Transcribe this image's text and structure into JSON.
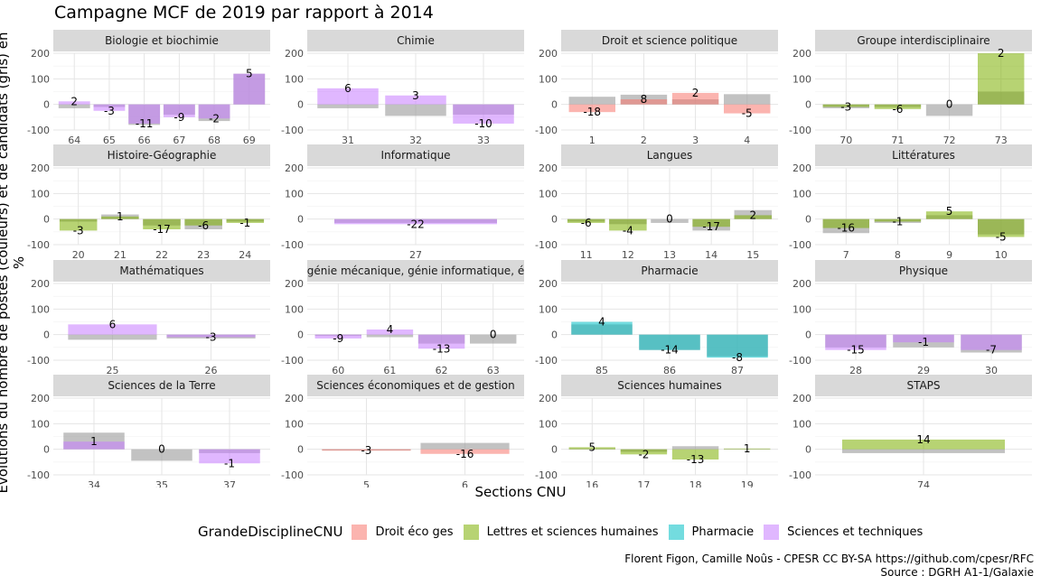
{
  "chart_data": {
    "type": "bar",
    "title": "Campagne MCF de 2019 par rapport à 2014",
    "xlabel": "Sections CNU",
    "ylabel": "Evolutions du nombre de postes (couleurs) et de candidats (gris) en %",
    "ylim": [
      -100,
      200
    ],
    "y_ticks": [
      -100,
      0,
      100,
      200
    ],
    "grid": true,
    "legend": {
      "title": "GrandeDisciplineCNU",
      "position": "bottom",
      "entries": [
        {
          "name": "Droit éco ges",
          "color": "#F8766D"
        },
        {
          "name": "Lettres et sciences humaines",
          "color": "#7CAE00"
        },
        {
          "name": "Pharmacie",
          "color": "#00BFC4"
        },
        {
          "name": "Sciences et techniques",
          "color": "#C77CFF"
        }
      ]
    },
    "candidates_color": "#999999",
    "panels": [
      {
        "name": "Biologie et biochimie",
        "group": "Sciences et techniques",
        "sections": [
          {
            "x": "64",
            "postes": 12,
            "candidats": -15,
            "label": "2"
          },
          {
            "x": "65",
            "postes": -25,
            "candidats": -10,
            "label": "-3"
          },
          {
            "x": "66",
            "postes": -75,
            "candidats": -80,
            "label": "-11"
          },
          {
            "x": "67",
            "postes": -50,
            "candidats": -40,
            "label": "-9"
          },
          {
            "x": "68",
            "postes": -55,
            "candidats": -65,
            "label": "-2"
          },
          {
            "x": "69",
            "postes": 120,
            "candidats": 120,
            "label": "5"
          }
        ]
      },
      {
        "name": "Chimie",
        "group": "Sciences et techniques",
        "sections": [
          {
            "x": "31",
            "postes": 63,
            "candidats": -15,
            "label": "6"
          },
          {
            "x": "32",
            "postes": 35,
            "candidats": -45,
            "label": "3"
          },
          {
            "x": "33",
            "postes": -75,
            "candidats": -40,
            "label": "-10"
          }
        ]
      },
      {
        "name": "Droit et science politique",
        "group": "Droit éco ges",
        "sections": [
          {
            "x": "1",
            "postes": -30,
            "candidats": 30,
            "label": "-18"
          },
          {
            "x": "2",
            "postes": 20,
            "candidats": 38,
            "label": "8"
          },
          {
            "x": "3",
            "postes": 45,
            "candidats": 20,
            "label": "2"
          },
          {
            "x": "4",
            "postes": -35,
            "candidats": 40,
            "label": "-5"
          }
        ]
      },
      {
        "name": "Groupe interdisciplinaire",
        "group": "Lettres et sciences humaines",
        "sections": [
          {
            "x": "70",
            "postes": -10,
            "candidats": -15,
            "label": "-3"
          },
          {
            "x": "71",
            "postes": -18,
            "candidats": -10,
            "label": "-6"
          },
          {
            "x": "72",
            "postes": 0,
            "candidats": -45,
            "label": "0"
          },
          {
            "x": "73",
            "postes": 200,
            "candidats": 50,
            "label": "2"
          }
        ]
      },
      {
        "name": "Histoire-Géographie",
        "group": "Lettres et sciences humaines",
        "sections": [
          {
            "x": "20",
            "postes": -45,
            "candidats": -10,
            "label": "-3"
          },
          {
            "x": "21",
            "postes": 10,
            "candidats": 18,
            "label": "1"
          },
          {
            "x": "22",
            "postes": -40,
            "candidats": -25,
            "label": "-17"
          },
          {
            "x": "23",
            "postes": -25,
            "candidats": -40,
            "label": "-6"
          },
          {
            "x": "24",
            "postes": -15,
            "candidats": -10,
            "label": "-1"
          }
        ]
      },
      {
        "name": "Informatique",
        "group": "Sciences et techniques",
        "sections": [
          {
            "x": "27",
            "postes": -20,
            "candidats": -15,
            "label": "-22"
          }
        ]
      },
      {
        "name": "Langues",
        "group": "Lettres et sciences humaines",
        "sections": [
          {
            "x": "11",
            "postes": -15,
            "candidats": -10,
            "label": "-6"
          },
          {
            "x": "12",
            "postes": -45,
            "candidats": -20,
            "label": "-4"
          },
          {
            "x": "13",
            "postes": 0,
            "candidats": -15,
            "label": "0"
          },
          {
            "x": "14",
            "postes": -30,
            "candidats": -45,
            "label": "-17"
          },
          {
            "x": "15",
            "postes": 15,
            "candidats": 35,
            "label": "2"
          }
        ]
      },
      {
        "name": "Littératures",
        "group": "Lettres et sciences humaines",
        "sections": [
          {
            "x": "7",
            "postes": -35,
            "candidats": -55,
            "label": "-16"
          },
          {
            "x": "8",
            "postes": -10,
            "candidats": -15,
            "label": "-1"
          },
          {
            "x": "9",
            "postes": 30,
            "candidats": 15,
            "label": "5"
          },
          {
            "x": "10",
            "postes": -70,
            "candidats": -60,
            "label": "-5"
          }
        ]
      },
      {
        "name": "Mathématiques",
        "group": "Sciences et techniques",
        "sections": [
          {
            "x": "25",
            "postes": 40,
            "candidats": -20,
            "label": "6"
          },
          {
            "x": "26",
            "postes": -10,
            "candidats": -15,
            "label": "-3"
          }
        ]
      },
      {
        "name": ", génie mécanique, génie informatique, én",
        "group": "Sciences et techniques",
        "sections": [
          {
            "x": "60",
            "postes": -15,
            "candidats": -5,
            "label": "-9"
          },
          {
            "x": "61",
            "postes": 20,
            "candidats": -10,
            "label": "4"
          },
          {
            "x": "62",
            "postes": -55,
            "candidats": -35,
            "label": "-13"
          },
          {
            "x": "63",
            "postes": 0,
            "candidats": -35,
            "label": "0"
          }
        ]
      },
      {
        "name": "Pharmacie",
        "group": "Pharmacie",
        "sections": [
          {
            "x": "85",
            "postes": 50,
            "candidats": 40,
            "label": "4"
          },
          {
            "x": "86",
            "postes": -60,
            "candidats": -60,
            "label": "-14"
          },
          {
            "x": "87",
            "postes": -90,
            "candidats": -85,
            "label": "-8"
          }
        ]
      },
      {
        "name": "Physique",
        "group": "Sciences et techniques",
        "sections": [
          {
            "x": "28",
            "postes": -60,
            "candidats": -50,
            "label": "-15"
          },
          {
            "x": "29",
            "postes": -30,
            "candidats": -50,
            "label": "-1"
          },
          {
            "x": "30",
            "postes": -60,
            "candidats": -70,
            "label": "-7"
          }
        ]
      },
      {
        "name": "Sciences de la Terre",
        "group": "Sciences et techniques",
        "sections": [
          {
            "x": "34",
            "postes": 30,
            "candidats": 65,
            "label": "1"
          },
          {
            "x": "35",
            "postes": 0,
            "candidats": -45,
            "label": "0"
          },
          {
            "x": "37",
            "postes": -55,
            "candidats": -15,
            "label": "-1"
          }
        ]
      },
      {
        "name": "Sciences économiques et de gestion",
        "group": "Droit éco ges",
        "sections": [
          {
            "x": "5",
            "postes": -5,
            "candidats": -5,
            "label": "-3"
          },
          {
            "x": "6",
            "postes": -18,
            "candidats": 25,
            "label": "-16"
          }
        ]
      },
      {
        "name": "Sciences humaines",
        "group": "Lettres et sciences humaines",
        "sections": [
          {
            "x": "16",
            "postes": 8,
            "candidats": 3,
            "label": "5"
          },
          {
            "x": "17",
            "postes": -20,
            "candidats": -10,
            "label": "-2"
          },
          {
            "x": "18",
            "postes": -40,
            "candidats": 12,
            "label": "-13"
          },
          {
            "x": "19",
            "postes": 3,
            "candidats": 2,
            "label": "1"
          }
        ]
      },
      {
        "name": "STAPS",
        "group": "Lettres et sciences humaines",
        "sections": [
          {
            "x": "74",
            "postes": 38,
            "candidats": -15,
            "label": "14"
          }
        ]
      }
    ]
  },
  "caption": {
    "line1": "Florent Figon, Camille Noûs - CPESR CC BY-SA https://github.com/cpesr/RFC",
    "line2": "Source : DGRH A1-1/Galaxie"
  }
}
